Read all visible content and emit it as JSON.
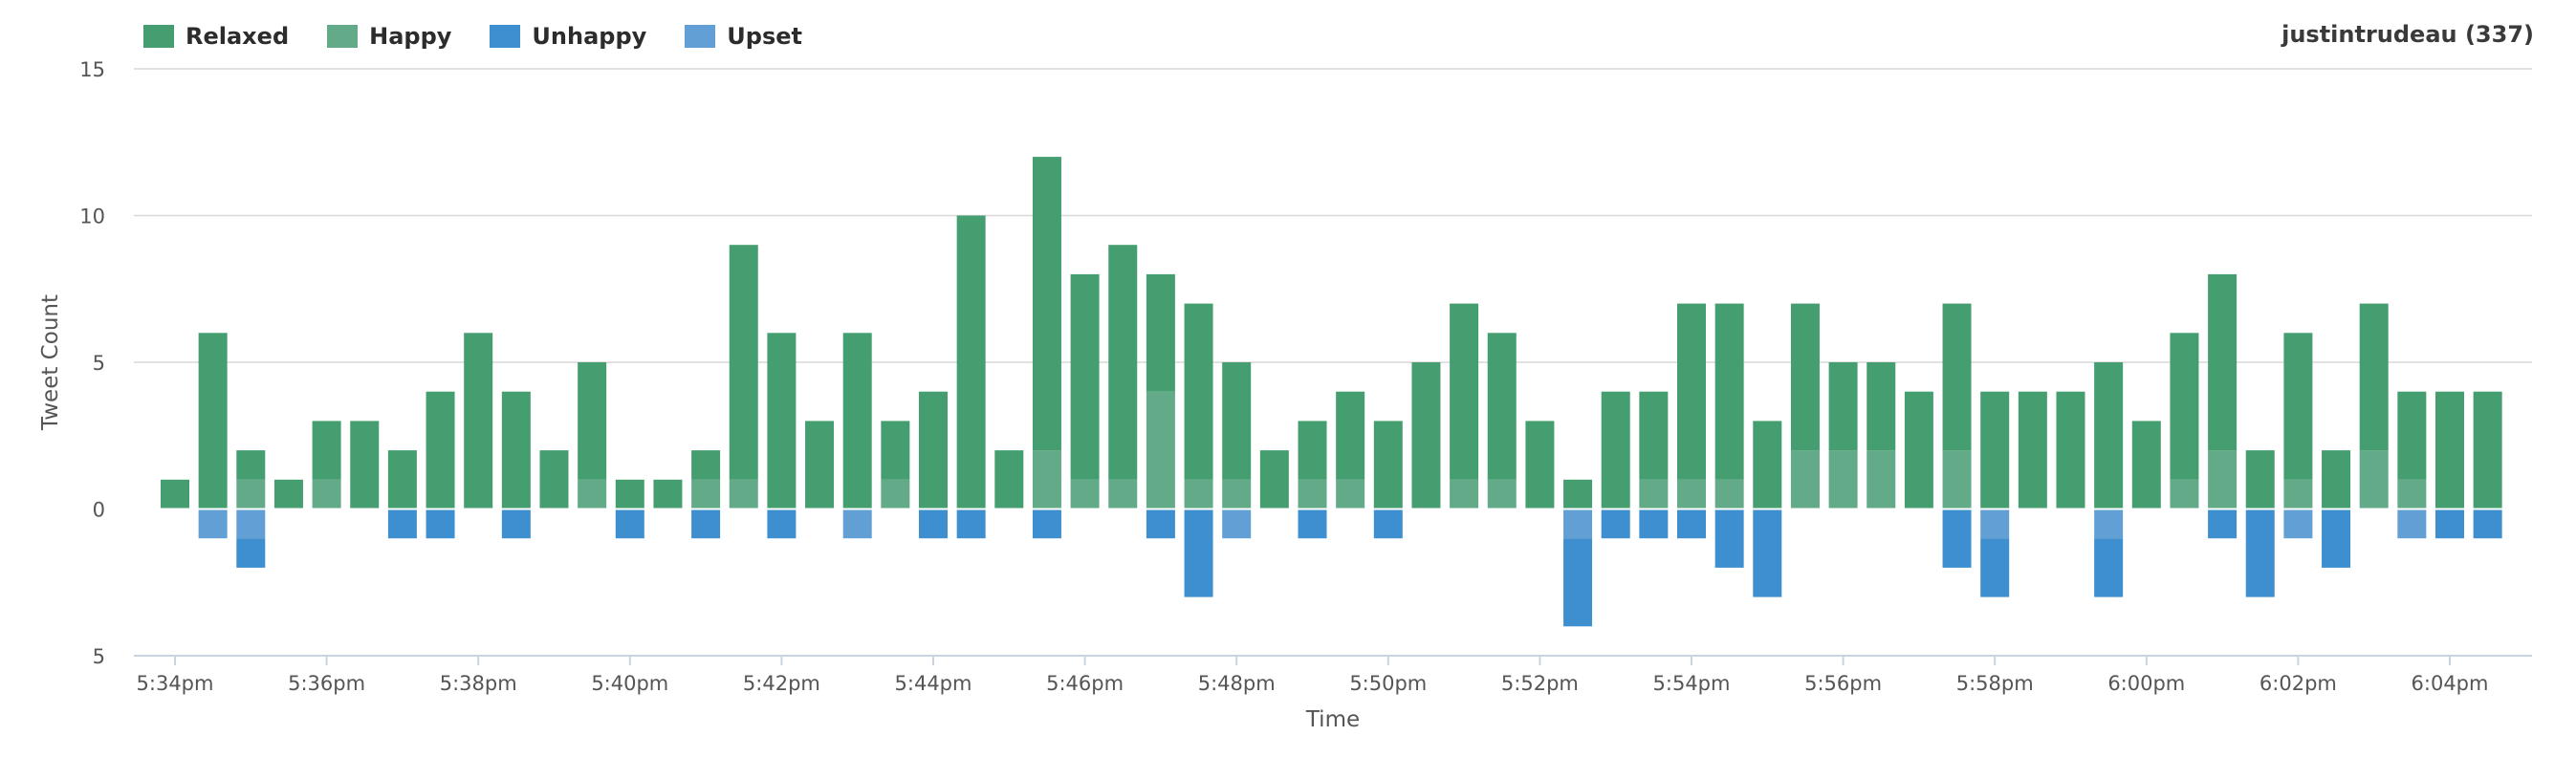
{
  "header": {
    "user_label": "justintrudeau (337)"
  },
  "legend": [
    {
      "label": "Relaxed",
      "color": "#459e6f"
    },
    {
      "label": "Happy",
      "color": "#62aa88"
    },
    {
      "label": "Unhappy",
      "color": "#3e8fcf"
    },
    {
      "label": "Upset",
      "color": "#629fd4"
    }
  ],
  "chart_data": {
    "type": "bar",
    "stacked": true,
    "xlabel": "Time",
    "ylabel": "Tweet Count",
    "ylim": [
      -5,
      15
    ],
    "y_ticks": [
      15,
      10,
      5,
      0,
      -5
    ],
    "y_tick_labels": [
      "15",
      "10",
      "5",
      "0",
      "5"
    ],
    "x_tick_labels": [
      "5:34pm",
      "5:36pm",
      "5:38pm",
      "5:40pm",
      "5:42pm",
      "5:44pm",
      "5:46pm",
      "5:48pm",
      "5:50pm",
      "5:52pm",
      "5:54pm",
      "5:56pm",
      "5:58pm",
      "6:00pm",
      "6:02pm",
      "6:04pm"
    ],
    "grid": true,
    "legend_position": "top-left",
    "categories": [
      "5:34pm",
      "5:34:30pm",
      "5:35pm",
      "5:35:30pm",
      "5:36pm",
      "5:36:30pm",
      "5:37pm",
      "5:37:30pm",
      "5:38pm",
      "5:38:30pm",
      "5:39pm",
      "5:39:30pm",
      "5:40pm",
      "5:40:30pm",
      "5:41pm",
      "5:41:30pm",
      "5:42pm",
      "5:42:30pm",
      "5:43pm",
      "5:43:30pm",
      "5:44pm",
      "5:44:30pm",
      "5:45pm",
      "5:45:30pm",
      "5:46pm",
      "5:46:30pm",
      "5:47pm",
      "5:47:30pm",
      "5:48pm",
      "5:48:30pm",
      "5:49pm",
      "5:49:30pm",
      "5:50pm",
      "5:50:30pm",
      "5:51pm",
      "5:51:30pm",
      "5:52pm",
      "5:52:30pm",
      "5:53pm",
      "5:53:30pm",
      "5:54pm",
      "5:54:30pm",
      "5:55pm",
      "5:55:30pm",
      "5:56pm",
      "5:56:30pm",
      "5:57pm",
      "5:57:30pm",
      "5:58pm",
      "5:58:30pm",
      "5:59pm",
      "5:59:30pm",
      "6:00pm",
      "6:00:30pm",
      "6:01pm",
      "6:01:30pm",
      "6:02pm",
      "6:02:30pm",
      "6:03pm",
      "6:03:30pm",
      "6:04pm",
      "6:04:30pm"
    ],
    "series": [
      {
        "name": "Relaxed",
        "values": [
          1,
          6,
          1,
          1,
          2,
          3,
          2,
          4,
          6,
          4,
          2,
          4,
          1,
          1,
          1,
          8,
          6,
          3,
          6,
          2,
          4,
          10,
          2,
          10,
          7,
          8,
          4,
          6,
          4,
          2,
          2,
          3,
          3,
          5,
          6,
          5,
          3,
          1,
          4,
          3,
          6,
          6,
          3,
          5,
          3,
          3,
          4,
          5,
          4,
          4,
          4,
          5,
          3,
          5,
          6,
          2,
          5,
          2,
          5,
          3,
          4,
          4
        ]
      },
      {
        "name": "Happy",
        "values": [
          0,
          0,
          1,
          0,
          1,
          0,
          0,
          0,
          0,
          0,
          0,
          1,
          0,
          0,
          1,
          1,
          0,
          0,
          0,
          1,
          0,
          0,
          0,
          2,
          1,
          1,
          4,
          1,
          1,
          0,
          1,
          1,
          0,
          0,
          1,
          1,
          0,
          0,
          0,
          1,
          1,
          1,
          0,
          2,
          2,
          2,
          0,
          2,
          0,
          0,
          0,
          0,
          0,
          1,
          2,
          0,
          1,
          0,
          2,
          1,
          0,
          0
        ]
      },
      {
        "name": "Unhappy",
        "values": [
          0,
          0,
          1,
          0,
          0,
          0,
          1,
          1,
          0,
          1,
          0,
          0,
          1,
          0,
          1,
          0,
          1,
          0,
          0,
          0,
          1,
          1,
          0,
          1,
          0,
          0,
          1,
          3,
          0,
          0,
          1,
          0,
          1,
          0,
          0,
          0,
          0,
          3,
          1,
          1,
          1,
          2,
          3,
          0,
          0,
          0,
          0,
          2,
          2,
          0,
          0,
          2,
          0,
          0,
          1,
          3,
          0,
          2,
          0,
          0,
          1,
          1
        ]
      },
      {
        "name": "Upset",
        "values": [
          0,
          1,
          1,
          0,
          0,
          0,
          0,
          0,
          0,
          0,
          0,
          0,
          0,
          0,
          0,
          0,
          0,
          0,
          1,
          0,
          0,
          0,
          0,
          0,
          0,
          0,
          0,
          0,
          1,
          0,
          0,
          0,
          0,
          0,
          0,
          0,
          0,
          1,
          0,
          0,
          0,
          0,
          0,
          0,
          0,
          0,
          0,
          0,
          1,
          0,
          0,
          1,
          0,
          0,
          0,
          0,
          1,
          0,
          0,
          1,
          0,
          0
        ]
      }
    ]
  }
}
